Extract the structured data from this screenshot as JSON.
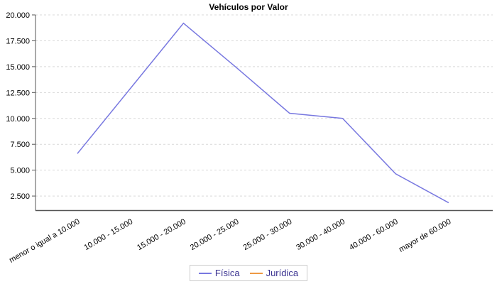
{
  "title": "Vehículos por Valor",
  "chart_data": {
    "type": "line",
    "title": "Vehículos por Valor",
    "categories": [
      "menor o igual a 10.000",
      "10.000 - 15.000",
      "15.000 - 20.000",
      "20.000 - 25.000",
      "25.000 - 30.000",
      "30.000 - 40.000",
      "40.000 - 60.000",
      "mayor de 60.000"
    ],
    "series": [
      {
        "name": "Física",
        "color": "#7878e0",
        "values": [
          6600,
          12900,
          19200,
          14900,
          10500,
          10000,
          4650,
          1850
        ]
      },
      {
        "name": "Jurídica",
        "color": "#ee9944",
        "values": []
      }
    ],
    "yticks": [
      {
        "value": 2500,
        "label": "2.500"
      },
      {
        "value": 5000,
        "label": "5.000"
      },
      {
        "value": 7500,
        "label": "7.500"
      },
      {
        "value": 10000,
        "label": "10.000"
      },
      {
        "value": 12500,
        "label": "12.500"
      },
      {
        "value": 15000,
        "label": "15.000"
      },
      {
        "value": 17500,
        "label": "17.500"
      },
      {
        "value": 20000,
        "label": "20.000"
      }
    ],
    "ylim": [
      1100,
      20000
    ],
    "xlabel": "",
    "ylabel": "",
    "grid": "horizontal-dashed",
    "legend_position": "bottom"
  },
  "colors": {
    "background": "#ffffff",
    "title_text": "#000000",
    "axis": "#555555",
    "gridline": "#d9d9d9",
    "tick_label": "#000000",
    "legend_text": "#38308f",
    "legend_border": "#cccccc"
  },
  "legend": {
    "items": [
      {
        "label": "Física",
        "color": "#7878e0"
      },
      {
        "label": "Jurídica",
        "color": "#ee9944"
      }
    ]
  }
}
